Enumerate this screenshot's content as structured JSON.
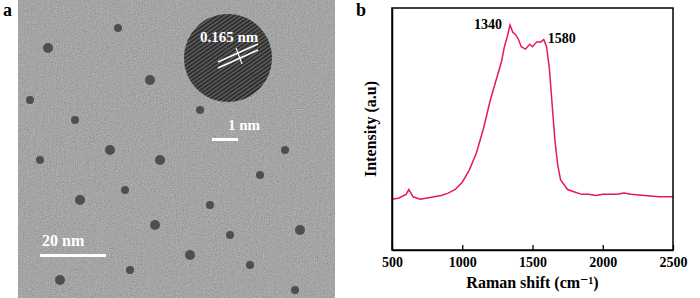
{
  "figure": {
    "panel_labels": [
      "a",
      "b"
    ],
    "tem_image": {
      "lattice_spacing": "0.165 nm",
      "inset_scale_bar": "1 nm",
      "scale_bar": "20 nm"
    }
  },
  "chart_data": {
    "type": "line",
    "x_label": "Raman shift (cm⁻¹)",
    "y_label": "Intensity (a.u)",
    "x": [
      500,
      550,
      600,
      620,
      650,
      700,
      750,
      800,
      850,
      900,
      950,
      1000,
      1050,
      1100,
      1150,
      1200,
      1250,
      1280,
      1300,
      1320,
      1340,
      1360,
      1380,
      1400,
      1420,
      1450,
      1480,
      1500,
      1530,
      1560,
      1580,
      1600,
      1620,
      1640,
      1660,
      1680,
      1700,
      1750,
      1800,
      1850,
      1900,
      1950,
      2000,
      2050,
      2100,
      2150,
      2200,
      2300,
      2400,
      2500
    ],
    "values": [
      21,
      21.5,
      23,
      25,
      22,
      21,
      21.5,
      22,
      22.5,
      23.5,
      25,
      28,
      33,
      40,
      50,
      62,
      72,
      78,
      84,
      88,
      93,
      90,
      89,
      87,
      84,
      83,
      85,
      84,
      86,
      86,
      87,
      84,
      75,
      60,
      45,
      35,
      29,
      25,
      24,
      23,
      23,
      22.5,
      23,
      23,
      23,
      23.5,
      23,
      22.5,
      22,
      22
    ],
    "color": "#e8175d",
    "xlim": [
      500,
      2500
    ],
    "xticks": [
      500,
      1000,
      1500,
      2000,
      2500
    ],
    "ylim": [
      0,
      100
    ],
    "tick_labels": "x",
    "annotations": [
      {
        "text": "1340",
        "x": 1340
      },
      {
        "text": "1580",
        "x": 1580
      }
    ]
  }
}
